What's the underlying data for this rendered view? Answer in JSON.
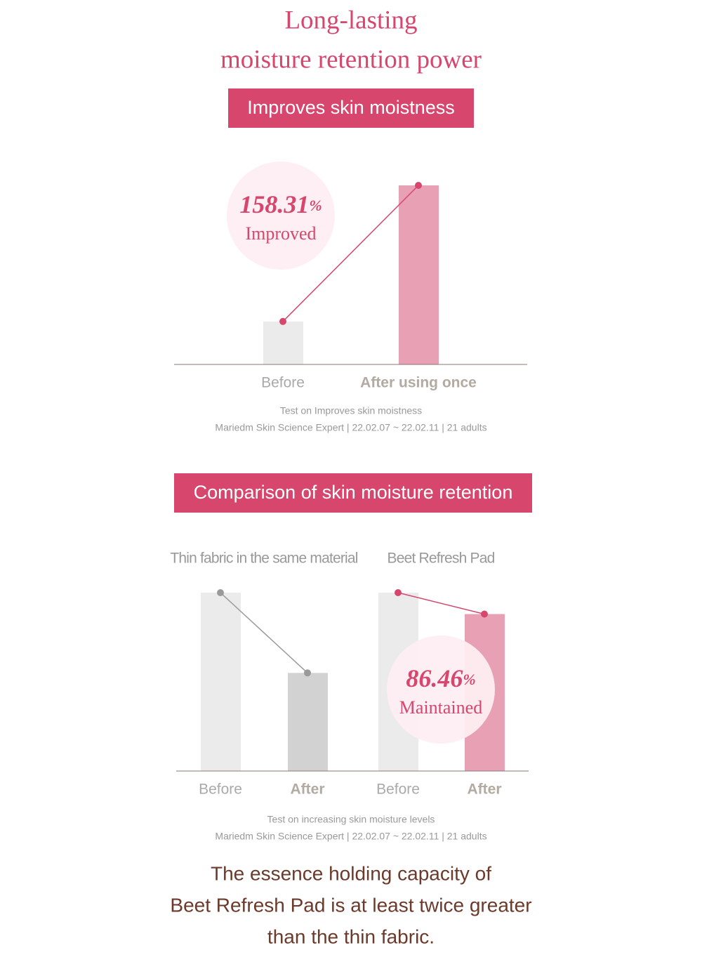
{
  "title": [
    "Long-lasting",
    "moisture retention power"
  ],
  "chart_data": [
    {
      "type": "bar",
      "title": "Improves skin moistness",
      "categories": [
        "Before",
        "After using once"
      ],
      "values": [
        24,
        100
      ],
      "colors": [
        "#ebebeb",
        "#e8a0b4"
      ],
      "line_color": "#d6466d",
      "annotation": {
        "value": "158.31",
        "unit": "%",
        "text": "Improved"
      },
      "notes": [
        "Test on Improves skin moistness",
        "Mariedm Skin Science Expert | 22.02.07 ~ 22.02.11 | 21 adults"
      ]
    },
    {
      "type": "grouped_bar",
      "title": "Comparison of skin moisture retention",
      "categories": [
        "Before",
        "After"
      ],
      "series": [
        {
          "name": "Thin fabric in the same material",
          "values": [
            100,
            55
          ],
          "colors": [
            "#ebebeb",
            "#d2d2d2"
          ],
          "line_color": "#9a9a9a"
        },
        {
          "name": "Beet Refresh Pad",
          "values": [
            100,
            88
          ],
          "colors": [
            "#ebebeb",
            "#e8a0b4"
          ],
          "line_color": "#d6466d"
        }
      ],
      "annotation": {
        "value": "86.46",
        "unit": "%",
        "text": "Maintained"
      },
      "notes": [
        "Test on increasing skin moisture levels",
        "Mariedm Skin Science Expert | 22.02.07 ~ 22.02.11 | 21 adults"
      ]
    }
  ],
  "conclusion": [
    "The essence holding capacity of",
    "Beet Refresh Pad is at least twice greater",
    "than the thin fabric."
  ]
}
